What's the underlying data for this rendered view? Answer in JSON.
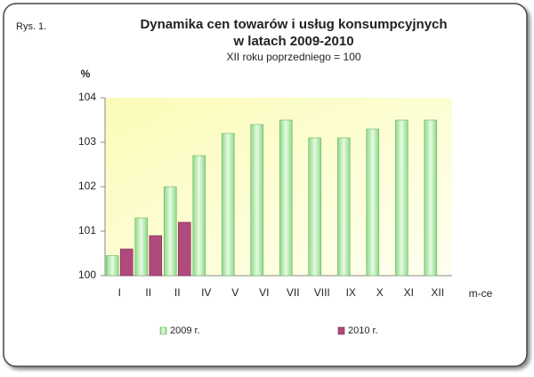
{
  "chart_data": {
    "type": "bar",
    "label": "Rys. 1.",
    "title": "Dynamika cen towarów i usług konsumpcyjnych",
    "title2": "w latach 2009-2010",
    "subtitle": "XII roku poprzedniego = 100",
    "y_label": "%",
    "x_label": "m-ce",
    "categories": [
      "I",
      "II",
      "II",
      "IV",
      "V",
      "VI",
      "VII",
      "VIII",
      "IX",
      "X",
      "XI",
      "XII"
    ],
    "series": [
      {
        "name": "2009 r.",
        "color": "#b8eeb0",
        "values": [
          100.45,
          101.3,
          102.0,
          102.7,
          103.2,
          103.4,
          103.5,
          103.1,
          103.1,
          103.3,
          103.5,
          103.5
        ]
      },
      {
        "name": "2010 r.",
        "color": "#b04a7c",
        "values": [
          100.6,
          100.9,
          101.2,
          null,
          null,
          null,
          null,
          null,
          null,
          null,
          null,
          null
        ]
      }
    ],
    "ylim": [
      100,
      104
    ],
    "yticks": [
      100,
      101,
      102,
      103,
      104
    ],
    "grid": false
  }
}
